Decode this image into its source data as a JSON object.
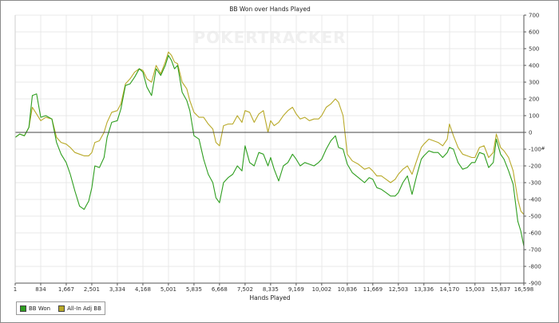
{
  "chart_data": {
    "type": "line",
    "title": "BB Won over Hands Played",
    "xlabel": "Hands Played",
    "ylabel": "",
    "watermark": "POKERTRACKER",
    "x_ticks": [
      "1",
      "834",
      "1,667",
      "2,501",
      "3,334",
      "4,168",
      "5,001",
      "5,835",
      "6,668",
      "7,502",
      "8,335",
      "9,169",
      "10,002",
      "10,836",
      "11,669",
      "12,503",
      "13,336",
      "14,170",
      "15,003",
      "15,837",
      "16,598"
    ],
    "xlim": [
      1,
      16598
    ],
    "ylim": [
      -900,
      700
    ],
    "y_ticks": [
      700,
      600,
      500,
      400,
      300,
      200,
      100,
      0,
      -100,
      -200,
      -300,
      -400,
      -500,
      -600,
      -700,
      -800,
      -900
    ],
    "grid": true,
    "legend_position": "bottom-left",
    "series": [
      {
        "name": "BB Won",
        "color": "#2e9e1f",
        "points": [
          [
            1,
            -30
          ],
          [
            150,
            -10
          ],
          [
            300,
            -20
          ],
          [
            450,
            30
          ],
          [
            560,
            220
          ],
          [
            700,
            230
          ],
          [
            834,
            90
          ],
          [
            1000,
            100
          ],
          [
            1200,
            80
          ],
          [
            1350,
            -60
          ],
          [
            1500,
            -130
          ],
          [
            1667,
            -180
          ],
          [
            1800,
            -250
          ],
          [
            1950,
            -350
          ],
          [
            2100,
            -440
          ],
          [
            2250,
            -460
          ],
          [
            2400,
            -410
          ],
          [
            2501,
            -330
          ],
          [
            2600,
            -200
          ],
          [
            2750,
            -210
          ],
          [
            2900,
            -150
          ],
          [
            3000,
            -30
          ],
          [
            3150,
            60
          ],
          [
            3334,
            70
          ],
          [
            3450,
            140
          ],
          [
            3600,
            280
          ],
          [
            3750,
            290
          ],
          [
            3900,
            330
          ],
          [
            4050,
            380
          ],
          [
            4168,
            360
          ],
          [
            4300,
            270
          ],
          [
            4450,
            220
          ],
          [
            4600,
            380
          ],
          [
            4750,
            340
          ],
          [
            4900,
            400
          ],
          [
            5001,
            460
          ],
          [
            5100,
            430
          ],
          [
            5200,
            380
          ],
          [
            5300,
            400
          ],
          [
            5450,
            240
          ],
          [
            5600,
            190
          ],
          [
            5700,
            130
          ],
          [
            5835,
            -20
          ],
          [
            6000,
            -40
          ],
          [
            6150,
            -160
          ],
          [
            6300,
            -250
          ],
          [
            6450,
            -300
          ],
          [
            6550,
            -390
          ],
          [
            6668,
            -420
          ],
          [
            6800,
            -300
          ],
          [
            6950,
            -270
          ],
          [
            7100,
            -250
          ],
          [
            7250,
            -200
          ],
          [
            7400,
            -230
          ],
          [
            7502,
            -80
          ],
          [
            7650,
            -180
          ],
          [
            7800,
            -200
          ],
          [
            7950,
            -120
          ],
          [
            8100,
            -130
          ],
          [
            8250,
            -200
          ],
          [
            8335,
            -150
          ],
          [
            8450,
            -220
          ],
          [
            8600,
            -290
          ],
          [
            8750,
            -200
          ],
          [
            8900,
            -180
          ],
          [
            9050,
            -130
          ],
          [
            9169,
            -160
          ],
          [
            9300,
            -200
          ],
          [
            9450,
            -180
          ],
          [
            9600,
            -190
          ],
          [
            9750,
            -200
          ],
          [
            9900,
            -180
          ],
          [
            10002,
            -160
          ],
          [
            10150,
            -100
          ],
          [
            10300,
            -50
          ],
          [
            10450,
            -20
          ],
          [
            10550,
            -90
          ],
          [
            10700,
            -100
          ],
          [
            10836,
            -190
          ],
          [
            11000,
            -240
          ],
          [
            11200,
            -270
          ],
          [
            11400,
            -300
          ],
          [
            11550,
            -270
          ],
          [
            11669,
            -280
          ],
          [
            11800,
            -330
          ],
          [
            11950,
            -340
          ],
          [
            12100,
            -360
          ],
          [
            12250,
            -380
          ],
          [
            12400,
            -380
          ],
          [
            12503,
            -360
          ],
          [
            12650,
            -300
          ],
          [
            12800,
            -260
          ],
          [
            12950,
            -370
          ],
          [
            13100,
            -260
          ],
          [
            13250,
            -160
          ],
          [
            13336,
            -140
          ],
          [
            13500,
            -110
          ],
          [
            13650,
            -120
          ],
          [
            13800,
            -120
          ],
          [
            13950,
            -150
          ],
          [
            14100,
            -120
          ],
          [
            14170,
            -90
          ],
          [
            14300,
            -100
          ],
          [
            14450,
            -180
          ],
          [
            14600,
            -220
          ],
          [
            14750,
            -210
          ],
          [
            14900,
            -180
          ],
          [
            15003,
            -180
          ],
          [
            15150,
            -120
          ],
          [
            15300,
            -130
          ],
          [
            15450,
            -210
          ],
          [
            15600,
            -180
          ],
          [
            15700,
            -40
          ],
          [
            15837,
            -130
          ],
          [
            15950,
            -160
          ],
          [
            16100,
            -230
          ],
          [
            16250,
            -310
          ],
          [
            16400,
            -530
          ],
          [
            16500,
            -590
          ],
          [
            16598,
            -680
          ]
        ]
      },
      {
        "name": "All-In Adj BB",
        "color": "#b8a928",
        "points": [
          [
            1,
            -30
          ],
          [
            150,
            -10
          ],
          [
            300,
            -20
          ],
          [
            450,
            30
          ],
          [
            560,
            150
          ],
          [
            700,
            110
          ],
          [
            834,
            70
          ],
          [
            1000,
            90
          ],
          [
            1200,
            80
          ],
          [
            1350,
            -30
          ],
          [
            1500,
            -60
          ],
          [
            1667,
            -70
          ],
          [
            1800,
            -90
          ],
          [
            1950,
            -120
          ],
          [
            2100,
            -130
          ],
          [
            2250,
            -140
          ],
          [
            2400,
            -140
          ],
          [
            2501,
            -120
          ],
          [
            2600,
            -60
          ],
          [
            2750,
            -50
          ],
          [
            2900,
            0
          ],
          [
            3000,
            60
          ],
          [
            3150,
            120
          ],
          [
            3334,
            130
          ],
          [
            3450,
            170
          ],
          [
            3600,
            290
          ],
          [
            3750,
            320
          ],
          [
            3900,
            360
          ],
          [
            4050,
            380
          ],
          [
            4168,
            370
          ],
          [
            4300,
            320
          ],
          [
            4450,
            300
          ],
          [
            4600,
            400
          ],
          [
            4750,
            350
          ],
          [
            4900,
            420
          ],
          [
            5001,
            480
          ],
          [
            5100,
            460
          ],
          [
            5200,
            420
          ],
          [
            5300,
            410
          ],
          [
            5450,
            300
          ],
          [
            5600,
            260
          ],
          [
            5700,
            190
          ],
          [
            5835,
            120
          ],
          [
            6000,
            90
          ],
          [
            6150,
            90
          ],
          [
            6300,
            50
          ],
          [
            6450,
            20
          ],
          [
            6550,
            -60
          ],
          [
            6668,
            -80
          ],
          [
            6800,
            40
          ],
          [
            6950,
            50
          ],
          [
            7100,
            50
          ],
          [
            7250,
            100
          ],
          [
            7400,
            60
          ],
          [
            7502,
            130
          ],
          [
            7650,
            120
          ],
          [
            7800,
            60
          ],
          [
            7950,
            110
          ],
          [
            8100,
            130
          ],
          [
            8250,
            0
          ],
          [
            8335,
            70
          ],
          [
            8450,
            40
          ],
          [
            8600,
            60
          ],
          [
            8750,
            100
          ],
          [
            8900,
            130
          ],
          [
            9050,
            150
          ],
          [
            9169,
            110
          ],
          [
            9300,
            80
          ],
          [
            9450,
            90
          ],
          [
            9600,
            70
          ],
          [
            9750,
            80
          ],
          [
            9900,
            80
          ],
          [
            10002,
            100
          ],
          [
            10150,
            150
          ],
          [
            10300,
            170
          ],
          [
            10450,
            200
          ],
          [
            10550,
            180
          ],
          [
            10700,
            100
          ],
          [
            10836,
            -130
          ],
          [
            11000,
            -170
          ],
          [
            11200,
            -190
          ],
          [
            11400,
            -220
          ],
          [
            11550,
            -210
          ],
          [
            11669,
            -230
          ],
          [
            11800,
            -260
          ],
          [
            11950,
            -260
          ],
          [
            12100,
            -280
          ],
          [
            12250,
            -300
          ],
          [
            12400,
            -280
          ],
          [
            12503,
            -250
          ],
          [
            12650,
            -220
          ],
          [
            12800,
            -200
          ],
          [
            12950,
            -250
          ],
          [
            13100,
            -170
          ],
          [
            13250,
            -90
          ],
          [
            13336,
            -70
          ],
          [
            13500,
            -40
          ],
          [
            13650,
            -50
          ],
          [
            13800,
            -60
          ],
          [
            13950,
            -80
          ],
          [
            14100,
            -40
          ],
          [
            14170,
            50
          ],
          [
            14300,
            -20
          ],
          [
            14450,
            -90
          ],
          [
            14600,
            -130
          ],
          [
            14750,
            -140
          ],
          [
            14900,
            -150
          ],
          [
            15003,
            -150
          ],
          [
            15150,
            -90
          ],
          [
            15300,
            -80
          ],
          [
            15450,
            -150
          ],
          [
            15600,
            -120
          ],
          [
            15700,
            -10
          ],
          [
            15837,
            -90
          ],
          [
            15950,
            -110
          ],
          [
            16100,
            -150
          ],
          [
            16250,
            -230
          ],
          [
            16400,
            -400
          ],
          [
            16500,
            -470
          ],
          [
            16598,
            -490
          ]
        ]
      }
    ]
  }
}
